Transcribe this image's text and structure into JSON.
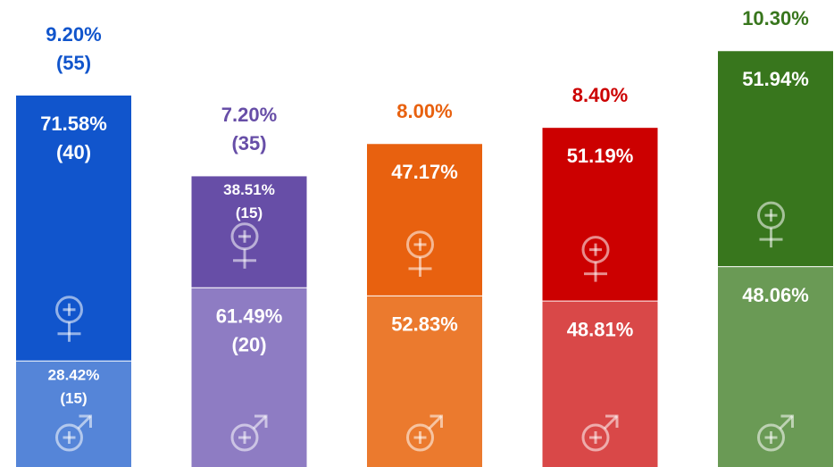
{
  "chart_data": {
    "type": "stacked_bar",
    "values": [
      9.2,
      7.2,
      8,
      8.4,
      10.3
    ],
    "value_labels": [
      "9.20%",
      "7.20%",
      "8.00%",
      "8.40%",
      "10.30%"
    ],
    "count_labels": [
      "(55)",
      "(35)",
      null,
      null,
      null
    ],
    "colors": [
      "#1155cc",
      "#674ea7",
      "#e8610f",
      "#cc0000",
      "#38761d"
    ],
    "series": [
      {
        "values": [
          71.58,
          38.51,
          47.17,
          51.19,
          51.94
        ],
        "value_labels": [
          "71.58%",
          "38.51%",
          "47.17%",
          "51.19%",
          "51.94%"
        ],
        "count_labels": [
          "(40)",
          "(15)",
          null,
          null,
          null
        ],
        "colors": [
          "#1155cc",
          "#674ea7",
          "#e8610f",
          "#cc0000",
          "#38761d"
        ]
      },
      {
        "values": [
          28.42,
          61.49,
          52.83,
          48.81,
          48.06
        ],
        "value_labels": [
          "28.42%",
          "61.49%",
          "52.83%",
          "48.81%",
          "48.06%"
        ],
        "count_labels": [
          "(15)",
          "(20)",
          null,
          null,
          null
        ],
        "colors": [
          "#5585d8",
          "#8e7cc3",
          "#eb7a2e",
          "#d94848",
          "#6a9a55"
        ]
      }
    ]
  }
}
